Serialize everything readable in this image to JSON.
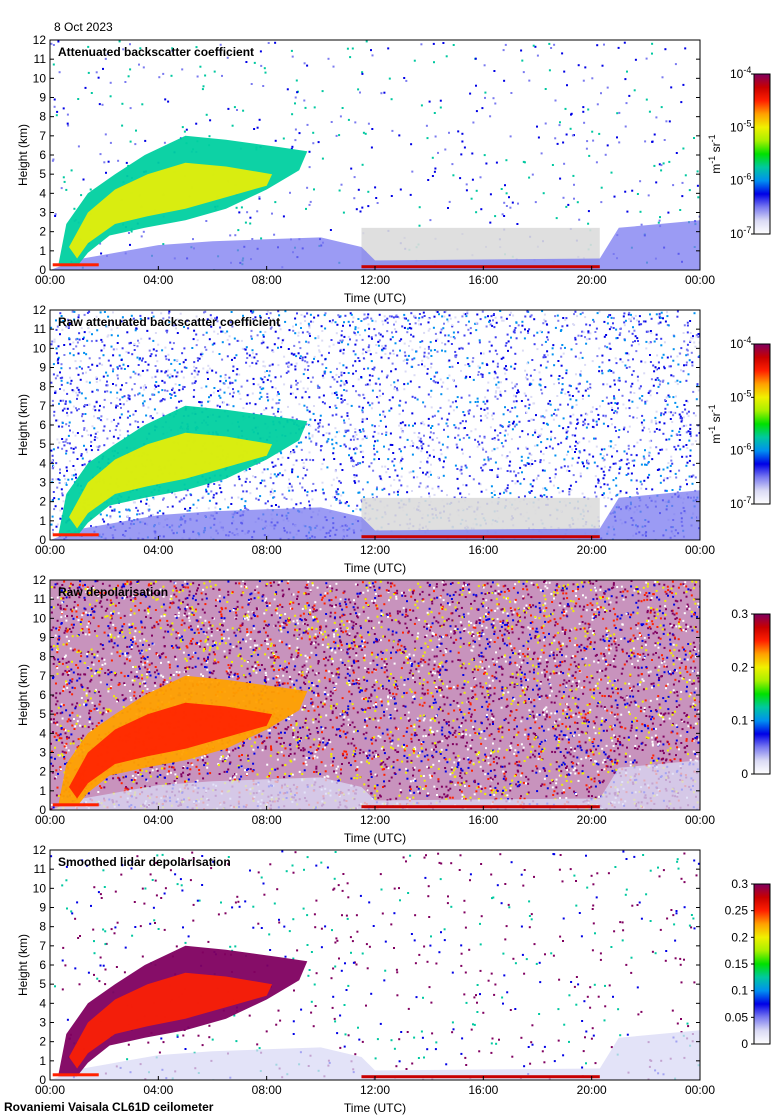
{
  "header": {
    "date": "8 Oct 2023"
  },
  "footer": {
    "site": "Rovaniemi Vaisala CL61D ceilometer"
  },
  "colors": {
    "cloud_mask": "#dcdcdc",
    "jet": [
      "#ffffff",
      "#dadaf5",
      "#7a7af0",
      "#0000e6",
      "#0090f0",
      "#00c8a0",
      "#00e000",
      "#a8f000",
      "#f0f000",
      "#ffa000",
      "#ff2000",
      "#c80000",
      "#800060"
    ]
  },
  "chart_data": [
    {
      "type": "heatmap",
      "title": "Attenuated backscatter coefficient",
      "xlabel": "Time (UTC)",
      "ylabel": "Height (km)",
      "xticks": [
        "00:00",
        "04:00",
        "08:00",
        "12:00",
        "16:00",
        "20:00",
        "00:00"
      ],
      "yticks": [
        "0",
        "1",
        "2",
        "3",
        "4",
        "5",
        "6",
        "7",
        "8",
        "9",
        "10",
        "11",
        "12"
      ],
      "xlim_hours": [
        0,
        24
      ],
      "ylim_km": [
        0,
        12
      ],
      "colorbar": {
        "scale": "log",
        "range": [
          1e-07,
          0.0001
        ],
        "ticks": [
          {
            "base": "10",
            "exp": "-4"
          },
          {
            "base": "10",
            "exp": "-5"
          },
          {
            "base": "10",
            "exp": "-6"
          },
          {
            "base": "10",
            "exp": "-7"
          }
        ],
        "unit_main": "m",
        "unit_exp1": "-1",
        "unit_mid": " sr",
        "unit_exp2": "-1"
      },
      "features": {
        "plume_color_hi": "#f0f000",
        "plume_color_lo": "#00d0a0",
        "background_noise": "sparse",
        "cloud_band_hours": [
          11.5,
          20.3
        ],
        "low_cloud_km": 0.15
      }
    },
    {
      "type": "heatmap",
      "title": "Raw attenuated backscatter coefficient",
      "xlabel": "Time (UTC)",
      "ylabel": "Height (km)",
      "xticks": [
        "00:00",
        "04:00",
        "08:00",
        "12:00",
        "16:00",
        "20:00",
        "00:00"
      ],
      "yticks": [
        "0",
        "1",
        "2",
        "3",
        "4",
        "5",
        "6",
        "7",
        "8",
        "9",
        "10",
        "11",
        "12"
      ],
      "xlim_hours": [
        0,
        24
      ],
      "ylim_km": [
        0,
        12
      ],
      "colorbar": {
        "scale": "log",
        "range": [
          1e-07,
          0.0001
        ],
        "ticks": [
          {
            "base": "10",
            "exp": "-4"
          },
          {
            "base": "10",
            "exp": "-5"
          },
          {
            "base": "10",
            "exp": "-6"
          },
          {
            "base": "10",
            "exp": "-7"
          }
        ],
        "unit_main": "m",
        "unit_exp1": "-1",
        "unit_mid": " sr",
        "unit_exp2": "-1"
      },
      "features": {
        "plume_color_hi": "#f0f000",
        "plume_color_lo": "#00d0a0",
        "background_noise": "dense_blue",
        "cloud_band_hours": [
          11.5,
          20.3
        ],
        "low_cloud_km": 0.15
      }
    },
    {
      "type": "heatmap",
      "title": "Raw depolarisation",
      "xlabel": "Time (UTC)",
      "ylabel": "Height (km)",
      "xticks": [
        "00:00",
        "04:00",
        "08:00",
        "12:00",
        "16:00",
        "20:00",
        "00:00"
      ],
      "yticks": [
        "0",
        "1",
        "2",
        "3",
        "4",
        "5",
        "6",
        "7",
        "8",
        "9",
        "10",
        "11",
        "12"
      ],
      "xlim_hours": [
        0,
        24
      ],
      "ylim_km": [
        0,
        12
      ],
      "colorbar": {
        "scale": "linear",
        "range": [
          0,
          0.3
        ],
        "ticks": [
          "0.3",
          "0.2",
          "0.1",
          "0"
        ]
      },
      "features": {
        "plume_color_hi": "#ff2000",
        "plume_color_lo": "#ffa000",
        "background_noise": "dense_purple",
        "cloud_band_hours": [
          11.5,
          20.3
        ],
        "low_cloud_km": 0.15
      }
    },
    {
      "type": "heatmap",
      "title": "Smoothed lidar depolarisation",
      "xlabel": "Time (UTC)",
      "ylabel": "Height (km)",
      "xticks": [
        "00:00",
        "04:00",
        "08:00",
        "12:00",
        "16:00",
        "20:00",
        "00:00"
      ],
      "yticks": [
        "0",
        "1",
        "2",
        "3",
        "4",
        "5",
        "6",
        "7",
        "8",
        "9",
        "10",
        "11",
        "12"
      ],
      "xlim_hours": [
        0,
        24
      ],
      "ylim_km": [
        0,
        12
      ],
      "colorbar": {
        "scale": "linear",
        "range": [
          0,
          0.3
        ],
        "ticks": [
          "0.3",
          "0.25",
          "0.2",
          "0.15",
          "0.1",
          "0.05",
          "0"
        ]
      },
      "features": {
        "plume_color_hi": "#ff2000",
        "plume_color_lo": "#800060",
        "background_noise": "sparse_purple",
        "cloud_band_hours": [
          11.5,
          20.3
        ],
        "low_cloud_km": 0.15
      }
    }
  ]
}
